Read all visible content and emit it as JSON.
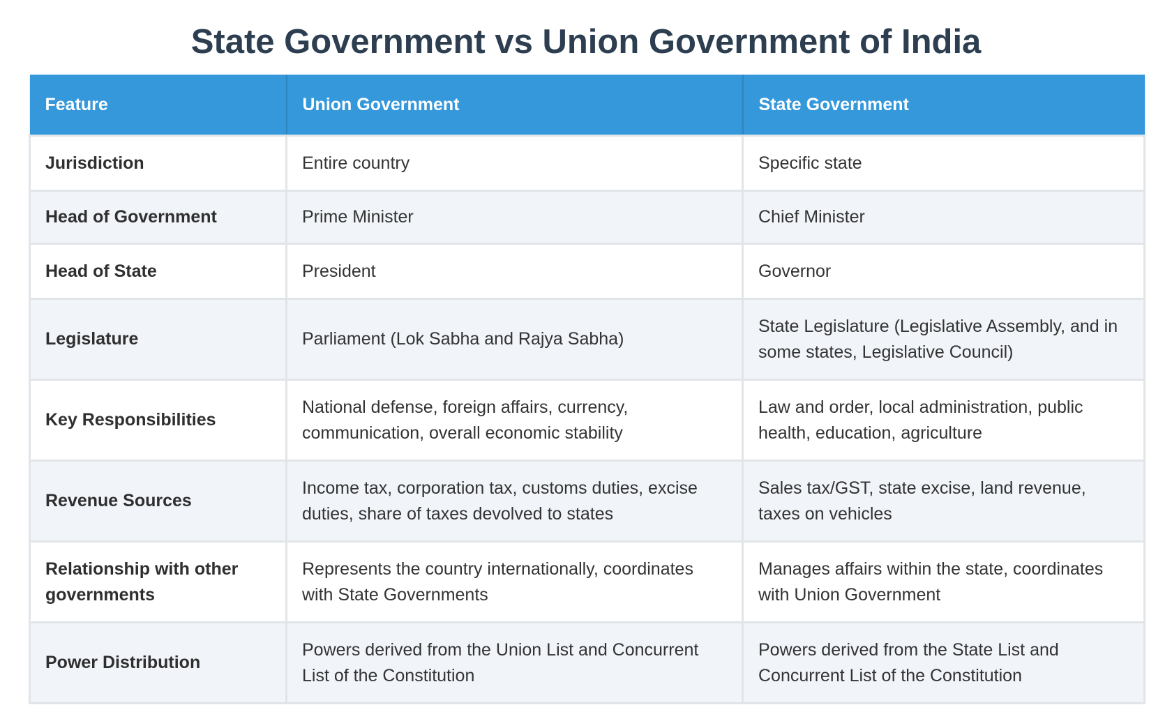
{
  "title": "State Government vs Union Government of India",
  "table": {
    "headers": [
      "Feature",
      "Union Government",
      "State Government"
    ],
    "rows": [
      {
        "feature": "Jurisdiction",
        "union": "Entire country",
        "state": "Specific state"
      },
      {
        "feature": "Head of Government",
        "union": "Prime Minister",
        "state": "Chief Minister"
      },
      {
        "feature": "Head of State",
        "union": "President",
        "state": "Governor"
      },
      {
        "feature": "Legislature",
        "union": "Parliament (Lok Sabha and Rajya Sabha)",
        "state": "State Legislature (Legislative Assembly, and in some states, Legislative Council)"
      },
      {
        "feature": "Key Responsibilities",
        "union": "National defense, foreign affairs, currency, communication, overall economic stability",
        "state": "Law and order, local administration, public health, education, agriculture"
      },
      {
        "feature": "Revenue Sources",
        "union": "Income tax, corporation tax, customs duties, excise duties, share of taxes devolved to states",
        "state": "Sales tax/GST, state excise, land revenue, taxes on vehicles"
      },
      {
        "feature": "Relationship with other governments",
        "union": "Represents the country internationally, coordinates with State Governments",
        "state": "Manages affairs within the state, coordinates with Union Government"
      },
      {
        "feature": "Power Distribution",
        "union": "Powers derived from the Union List and Concurrent List of the Constitution",
        "state": "Powers derived from the State List and Concurrent List of the Constitution"
      }
    ]
  },
  "colors": {
    "header_bg": "#3498db",
    "title": "#2c3e50",
    "row_alt": "#f1f4f9"
  }
}
